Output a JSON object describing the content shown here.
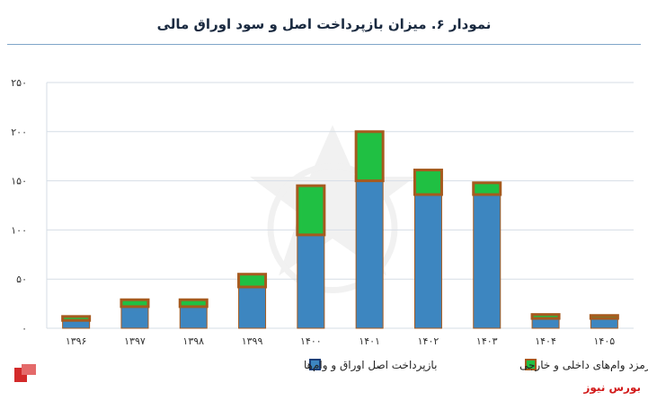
{
  "chart_data": {
    "type": "bar",
    "title": "نمودار ۶. میزان بازپرداخت اصل و سود اوراق مالی",
    "categories": [
      "۱۳۹۶",
      "۱۳۹۷",
      "۱۳۹۸",
      "۱۳۹۹",
      "۱۴۰۰",
      "۱۴۰۱",
      "۱۴۰۲",
      "۱۴۰۳",
      "۱۴۰۴",
      "۱۴۰۵"
    ],
    "stacked": true,
    "series": [
      {
        "name": "بازپرداخت اصل اوراق و وام‌ها",
        "color": "#3d86c0",
        "values": [
          8,
          22,
          22,
          42,
          95,
          150,
          136,
          136,
          10,
          10
        ]
      },
      {
        "name": "سود و کارمزد وام‌های داخلی و خارجی",
        "color": "#20c043",
        "values": [
          4,
          7,
          7,
          13,
          50,
          50,
          25,
          12,
          4,
          3
        ]
      }
    ],
    "ylim": [
      0,
      250
    ],
    "yticks": [
      0,
      50,
      100,
      150,
      200,
      250
    ],
    "ytick_labels": [
      "۰",
      "۵۰",
      "۱۰۰",
      "۱۵۰",
      "۲۰۰",
      "۲۵۰"
    ],
    "grid": true,
    "legend_position": "bottom"
  },
  "source_label": "بورس نیوز",
  "colors": {
    "bar_outline": "#a65a1e",
    "legend_blue_border": "#1c3f7a",
    "grid": "#d6dde6"
  }
}
